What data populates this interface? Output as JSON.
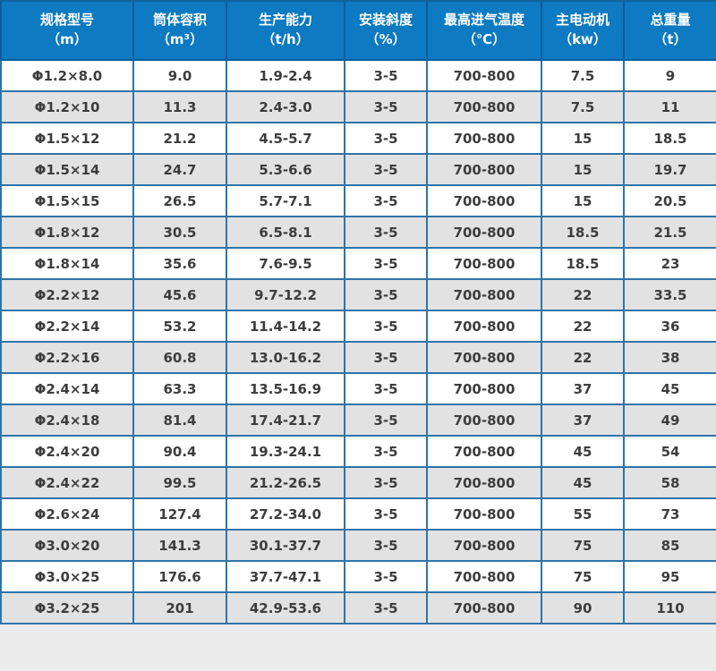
{
  "page": {
    "background": "#ececec"
  },
  "table": {
    "description": "equipment-specification-table",
    "colors": {
      "header_bg": "#0d7ac1",
      "header_text": "#ffffff",
      "outer_border": "#15639f",
      "inner_border": "#2e74a8",
      "row_white": "#ffffff",
      "row_gray": "#e2e2e2",
      "cell_text": "#3d3d3d"
    },
    "columns": [
      {
        "title": "规格型号",
        "unit": "（m）"
      },
      {
        "title": "筒体容积",
        "unit": "（m³）"
      },
      {
        "title": "生产能力",
        "unit": "（t/h）"
      },
      {
        "title": "安装斜度",
        "unit": "（%）"
      },
      {
        "title": "最高进气温度",
        "unit": "（℃）"
      },
      {
        "title": "主电动机",
        "unit": "（kw）"
      },
      {
        "title": "总重量",
        "unit": "（t）"
      }
    ],
    "rows": [
      [
        "Φ1.2×8.0",
        "9.0",
        "1.9-2.4",
        "3-5",
        "700-800",
        "7.5",
        "9"
      ],
      [
        "Φ1.2×10",
        "11.3",
        "2.4-3.0",
        "3-5",
        "700-800",
        "7.5",
        "11"
      ],
      [
        "Φ1.5×12",
        "21.2",
        "4.5-5.7",
        "3-5",
        "700-800",
        "15",
        "18.5"
      ],
      [
        "Φ1.5×14",
        "24.7",
        "5.3-6.6",
        "3-5",
        "700-800",
        "15",
        "19.7"
      ],
      [
        "Φ1.5×15",
        "26.5",
        "5.7-7.1",
        "3-5",
        "700-800",
        "15",
        "20.5"
      ],
      [
        "Φ1.8×12",
        "30.5",
        "6.5-8.1",
        "3-5",
        "700-800",
        "18.5",
        "21.5"
      ],
      [
        "Φ1.8×14",
        "35.6",
        "7.6-9.5",
        "3-5",
        "700-800",
        "18.5",
        "23"
      ],
      [
        "Φ2.2×12",
        "45.6",
        "9.7-12.2",
        "3-5",
        "700-800",
        "22",
        "33.5"
      ],
      [
        "Φ2.2×14",
        "53.2",
        "11.4-14.2",
        "3-5",
        "700-800",
        "22",
        "36"
      ],
      [
        "Φ2.2×16",
        "60.8",
        "13.0-16.2",
        "3-5",
        "700-800",
        "22",
        "38"
      ],
      [
        "Φ2.4×14",
        "63.3",
        "13.5-16.9",
        "3-5",
        "700-800",
        "37",
        "45"
      ],
      [
        "Φ2.4×18",
        "81.4",
        "17.4-21.7",
        "3-5",
        "700-800",
        "37",
        "49"
      ],
      [
        "Φ2.4×20",
        "90.4",
        "19.3-24.1",
        "3-5",
        "700-800",
        "45",
        "54"
      ],
      [
        "Φ2.4×22",
        "99.5",
        "21.2-26.5",
        "3-5",
        "700-800",
        "45",
        "58"
      ],
      [
        "Φ2.6×24",
        "127.4",
        "27.2-34.0",
        "3-5",
        "700-800",
        "55",
        "73"
      ],
      [
        "Φ3.0×20",
        "141.3",
        "30.1-37.7",
        "3-5",
        "700-800",
        "75",
        "85"
      ],
      [
        "Φ3.0×25",
        "176.6",
        "37.7-47.1",
        "3-5",
        "700-800",
        "75",
        "95"
      ],
      [
        "Φ3.2×25",
        "201",
        "42.9-53.6",
        "3-5",
        "700-800",
        "90",
        "110"
      ]
    ]
  }
}
